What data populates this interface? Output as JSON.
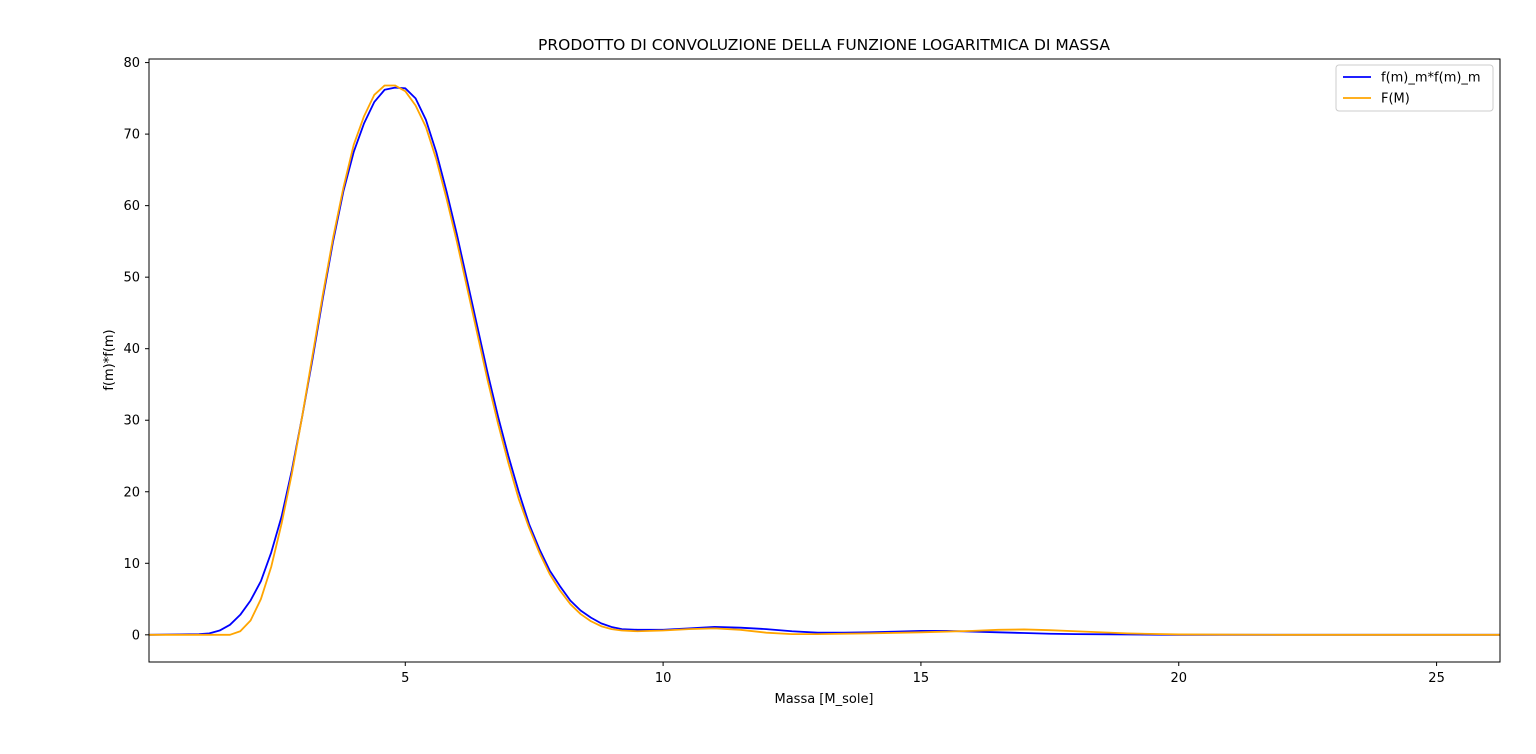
{
  "chart_data": {
    "type": "line",
    "title": "PRODOTTO DI CONVOLUZIONE DELLA FUNZIONE LOGARITMICA DI MASSA",
    "xlabel": "Massa [M_sole]",
    "ylabel": "f(m)*f(m)",
    "xlim": [
      0.03,
      26.23
    ],
    "ylim": [
      -3.8,
      80.5
    ],
    "xticks": [
      5,
      10,
      15,
      20,
      25
    ],
    "yticks": [
      0,
      10,
      20,
      30,
      40,
      50,
      60,
      70,
      80
    ],
    "grid": false,
    "legend_position": "top-right",
    "series": [
      {
        "name": "f(m)_m*f(m)_m",
        "color": "#0000ff",
        "x": [
          0.03,
          1.0,
          1.2,
          1.4,
          1.6,
          1.8,
          2.0,
          2.2,
          2.4,
          2.6,
          2.8,
          3.0,
          3.2,
          3.4,
          3.6,
          3.8,
          4.0,
          4.2,
          4.4,
          4.6,
          4.8,
          5.0,
          5.2,
          5.4,
          5.6,
          5.8,
          6.0,
          6.2,
          6.4,
          6.6,
          6.8,
          7.0,
          7.2,
          7.4,
          7.6,
          7.8,
          8.0,
          8.2,
          8.4,
          8.6,
          8.8,
          9.0,
          9.2,
          9.5,
          10.0,
          10.5,
          11.0,
          11.5,
          12.0,
          12.5,
          13.0,
          13.5,
          14.0,
          14.5,
          15.0,
          15.5,
          16.0,
          16.5,
          17.0,
          17.5,
          18.0,
          19.0,
          20.0,
          22.0,
          26.23
        ],
        "values": [
          0.0,
          0.1,
          0.2,
          0.6,
          1.4,
          2.8,
          4.8,
          7.5,
          11.5,
          16.5,
          23.0,
          30.5,
          38.5,
          47.0,
          55.0,
          62.0,
          67.5,
          71.5,
          74.5,
          76.2,
          76.5,
          76.4,
          75.0,
          72.0,
          67.5,
          62.0,
          56.0,
          49.5,
          43.0,
          36.5,
          30.5,
          25.0,
          20.0,
          15.5,
          12.0,
          9.0,
          6.8,
          4.8,
          3.4,
          2.4,
          1.6,
          1.1,
          0.8,
          0.7,
          0.7,
          0.9,
          1.1,
          1.0,
          0.8,
          0.5,
          0.3,
          0.3,
          0.35,
          0.45,
          0.55,
          0.55,
          0.45,
          0.35,
          0.25,
          0.15,
          0.1,
          0.05,
          0.0,
          0.0,
          0.0
        ]
      },
      {
        "name": "F(M)",
        "color": "#ffa500",
        "x": [
          0.03,
          1.6,
          1.8,
          2.0,
          2.2,
          2.4,
          2.6,
          2.8,
          3.0,
          3.2,
          3.4,
          3.6,
          3.8,
          4.0,
          4.2,
          4.4,
          4.6,
          4.8,
          5.0,
          5.2,
          5.4,
          5.6,
          5.8,
          6.0,
          6.2,
          6.4,
          6.6,
          6.8,
          7.0,
          7.2,
          7.4,
          7.6,
          7.8,
          8.0,
          8.2,
          8.4,
          8.6,
          8.8,
          9.0,
          9.2,
          9.5,
          10.0,
          10.5,
          11.0,
          11.5,
          12.0,
          12.5,
          13.0,
          14.0,
          15.0,
          16.0,
          16.5,
          17.0,
          17.5,
          18.0,
          19.0,
          20.0,
          22.0,
          26.23
        ],
        "values": [
          0.0,
          0.0,
          0.5,
          2.0,
          5.0,
          9.5,
          15.5,
          22.5,
          30.5,
          39.0,
          47.5,
          55.5,
          62.5,
          68.5,
          72.5,
          75.5,
          76.8,
          76.8,
          76.0,
          74.0,
          71.0,
          66.5,
          61.0,
          55.0,
          48.5,
          42.0,
          35.5,
          29.5,
          24.0,
          19.0,
          15.0,
          11.5,
          8.5,
          6.2,
          4.3,
          2.9,
          1.9,
          1.2,
          0.8,
          0.6,
          0.5,
          0.6,
          0.8,
          0.9,
          0.7,
          0.3,
          0.1,
          0.1,
          0.2,
          0.35,
          0.55,
          0.7,
          0.75,
          0.65,
          0.5,
          0.2,
          0.05,
          0.0,
          0.0
        ]
      }
    ]
  }
}
